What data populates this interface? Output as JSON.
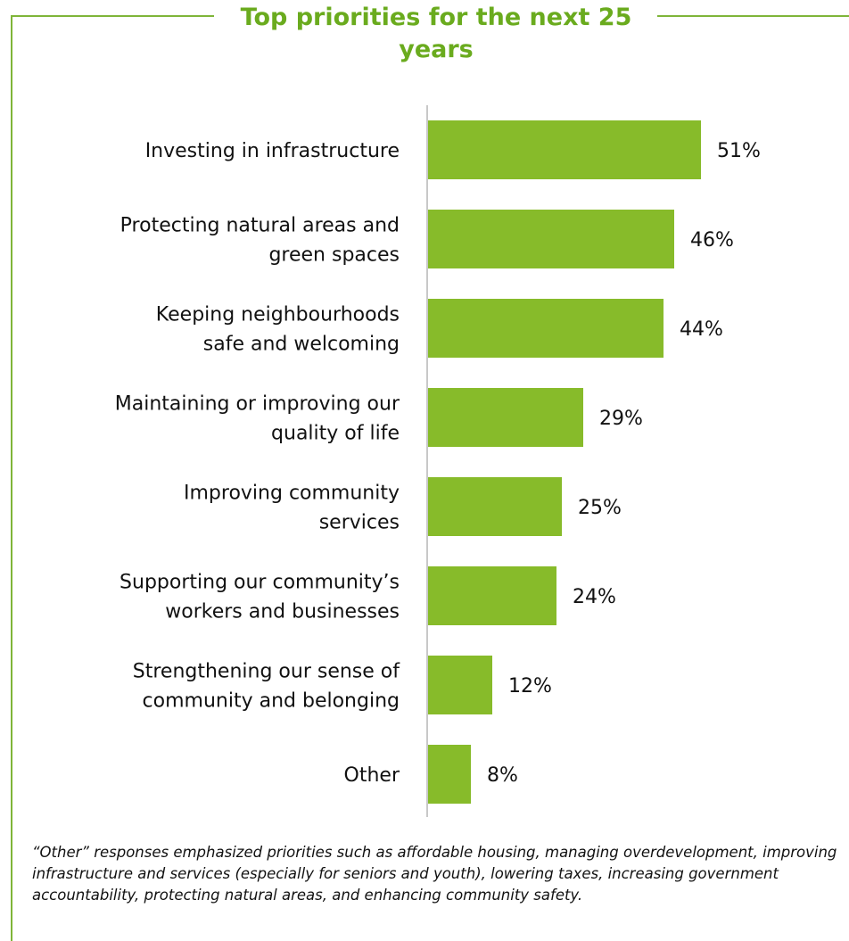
{
  "colors": {
    "bar": "#87bb2a",
    "title": "#6aab1e",
    "frame": "#7fb539",
    "axis": "#c8c8c8",
    "text": "#111111"
  },
  "chart_data": {
    "type": "bar",
    "orientation": "horizontal",
    "title": "Top priorities for the next 25 years",
    "categories": [
      [
        "Investing in infrastructure"
      ],
      [
        "Protecting natural areas and",
        "green spaces"
      ],
      [
        "Keeping neighbourhoods",
        "safe and welcoming"
      ],
      [
        "Maintaining or improving our",
        "quality of life"
      ],
      [
        "Improving community",
        "services"
      ],
      [
        "Supporting our community’s",
        "workers and businesses"
      ],
      [
        "Strengthening our sense of",
        "community and belonging"
      ],
      [
        "Other"
      ]
    ],
    "values": [
      51,
      46,
      44,
      29,
      25,
      24,
      12,
      8
    ],
    "value_labels": [
      "51%",
      "46%",
      "44%",
      "29%",
      "25%",
      "24%",
      "12%",
      "8%"
    ],
    "unit": "%",
    "grid": false,
    "legend": "none"
  },
  "footnote": "“Other” responses emphasized priorities such as affordable housing, managing overdevelopment, improving infrastructure and services (especially for seniors and youth), lowering taxes, increasing government accountability, protecting natural areas, and enhancing community safety."
}
